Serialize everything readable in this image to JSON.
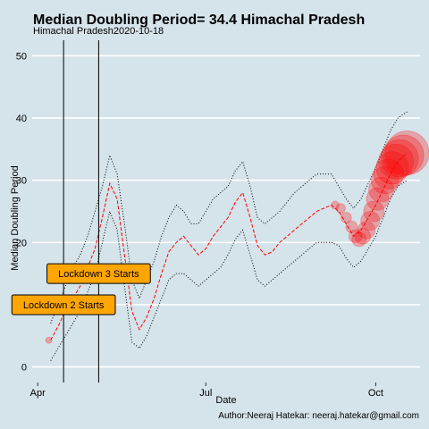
{
  "chart_data": {
    "type": "line",
    "title": "Median Doubling Period=  34.4 Himachal Pradesh",
    "subtitle": "Himachal Pradesh2020-10-18",
    "xlabel": "Date",
    "ylabel": "Median Doubling Period",
    "caption": "Author:Neeraj Hatekar: neeraj.hatekar@gmail.com",
    "ylim": [
      -2.5,
      52.5
    ],
    "xlim": [
      "2020-03-29",
      "2020-10-25"
    ],
    "y_ticks": [
      0,
      10,
      20,
      30,
      40,
      50
    ],
    "x_ticks": [
      {
        "date": "2020-04-01",
        "label": "Apr"
      },
      {
        "date": "2020-07-01",
        "label": "Jul"
      },
      {
        "date": "2020-10-01",
        "label": "Oct"
      }
    ],
    "grid": true,
    "colors": {
      "median": "#ff0000",
      "band": "#000000",
      "background": "#d5e3ea",
      "grid": "#ffffff",
      "annotation": "#ffa500"
    },
    "vlines": [
      {
        "date": "2020-04-15",
        "label": "Lockdown 2 Starts",
        "label_y": 10
      },
      {
        "date": "2020-05-04",
        "label": "Lockdown 3 Starts",
        "label_y": 15
      }
    ],
    "series": [
      {
        "role": "median",
        "style": "dashed",
        "x": [
          "2020-04-08",
          "2020-04-12",
          "2020-04-16",
          "2020-04-20",
          "2020-04-24",
          "2020-04-28",
          "2020-05-02",
          "2020-05-06",
          "2020-05-10",
          "2020-05-14",
          "2020-05-18",
          "2020-05-22",
          "2020-05-26",
          "2020-05-30",
          "2020-06-03",
          "2020-06-07",
          "2020-06-11",
          "2020-06-15",
          "2020-06-19",
          "2020-06-23",
          "2020-06-27",
          "2020-07-01",
          "2020-07-05",
          "2020-07-09",
          "2020-07-13",
          "2020-07-17",
          "2020-07-21",
          "2020-07-25",
          "2020-07-29",
          "2020-08-02",
          "2020-08-06",
          "2020-08-10",
          "2020-08-14",
          "2020-08-18",
          "2020-08-22",
          "2020-08-26",
          "2020-08-30",
          "2020-09-03",
          "2020-09-07",
          "2020-09-11",
          "2020-09-15",
          "2020-09-19",
          "2020-09-23",
          "2020-09-27",
          "2020-10-01",
          "2020-10-05",
          "2020-10-09",
          "2020-10-13",
          "2020-10-18"
        ],
        "y": [
          4.3,
          6.5,
          9,
          11,
          13,
          16,
          19,
          24,
          29.5,
          27,
          18,
          9,
          6,
          8,
          11,
          15,
          18.5,
          20,
          21,
          19.5,
          18,
          19,
          21,
          22.5,
          24,
          26.5,
          28,
          24,
          19.5,
          18,
          18.5,
          20,
          21,
          22,
          23,
          24,
          25,
          25.5,
          26,
          25,
          23,
          21,
          22,
          24,
          26,
          28.5,
          31,
          33,
          34.4
        ]
      },
      {
        "role": "upper-band",
        "style": "dotted",
        "x": [
          "2020-04-08",
          "2020-04-12",
          "2020-04-16",
          "2020-04-20",
          "2020-04-24",
          "2020-04-28",
          "2020-05-02",
          "2020-05-06",
          "2020-05-10",
          "2020-05-14",
          "2020-05-18",
          "2020-05-22",
          "2020-05-26",
          "2020-05-30",
          "2020-06-03",
          "2020-06-07",
          "2020-06-11",
          "2020-06-15",
          "2020-06-19",
          "2020-06-23",
          "2020-06-27",
          "2020-07-01",
          "2020-07-05",
          "2020-07-09",
          "2020-07-13",
          "2020-07-17",
          "2020-07-21",
          "2020-07-25",
          "2020-07-29",
          "2020-08-02",
          "2020-08-06",
          "2020-08-10",
          "2020-08-14",
          "2020-08-18",
          "2020-08-22",
          "2020-08-26",
          "2020-08-30",
          "2020-09-03",
          "2020-09-07",
          "2020-09-11",
          "2020-09-15",
          "2020-09-19",
          "2020-09-23",
          "2020-09-27",
          "2020-10-01",
          "2020-10-05",
          "2020-10-09",
          "2020-10-13",
          "2020-10-18"
        ],
        "y": [
          7,
          10,
          13,
          16,
          18,
          21,
          25,
          29,
          34,
          31,
          23,
          14,
          11,
          14,
          17,
          21,
          24,
          26,
          25,
          23,
          23,
          25,
          27,
          28,
          29,
          31.5,
          33,
          29,
          24,
          23,
          24,
          25,
          26.5,
          28,
          29,
          30,
          31,
          31,
          31,
          29,
          27,
          25.5,
          27,
          29.5,
          32,
          35,
          38,
          40,
          41
        ]
      },
      {
        "role": "lower-band",
        "style": "dotted",
        "x": [
          "2020-04-08",
          "2020-04-12",
          "2020-04-16",
          "2020-04-20",
          "2020-04-24",
          "2020-04-28",
          "2020-05-02",
          "2020-05-06",
          "2020-05-10",
          "2020-05-14",
          "2020-05-18",
          "2020-05-22",
          "2020-05-26",
          "2020-05-30",
          "2020-06-03",
          "2020-06-07",
          "2020-06-11",
          "2020-06-15",
          "2020-06-19",
          "2020-06-23",
          "2020-06-27",
          "2020-07-01",
          "2020-07-05",
          "2020-07-09",
          "2020-07-13",
          "2020-07-17",
          "2020-07-21",
          "2020-07-25",
          "2020-07-29",
          "2020-08-02",
          "2020-08-06",
          "2020-08-10",
          "2020-08-14",
          "2020-08-18",
          "2020-08-22",
          "2020-08-26",
          "2020-08-30",
          "2020-09-03",
          "2020-09-07",
          "2020-09-11",
          "2020-09-15",
          "2020-09-19",
          "2020-09-23",
          "2020-09-27",
          "2020-10-01",
          "2020-10-05",
          "2020-10-09",
          "2020-10-13",
          "2020-10-18"
        ],
        "y": [
          1,
          3,
          5,
          7,
          9,
          12,
          15,
          20,
          25,
          22,
          13,
          4,
          3,
          5,
          8,
          11,
          14,
          15,
          15,
          14,
          13,
          14,
          15,
          16,
          18,
          20.5,
          22,
          18,
          14,
          13,
          14,
          15,
          16,
          17,
          18,
          19,
          20,
          20,
          20,
          19.5,
          17.5,
          16,
          17,
          19,
          21,
          24,
          27,
          29,
          30
        ]
      }
    ],
    "points": {
      "x": [
        "2020-04-07",
        "2020-09-09",
        "2020-09-12",
        "2020-09-15",
        "2020-09-18",
        "2020-09-20",
        "2020-09-22",
        "2020-09-24",
        "2020-09-26",
        "2020-09-28",
        "2020-09-30",
        "2020-10-02",
        "2020-10-04",
        "2020-10-06",
        "2020-10-08",
        "2020-10-10",
        "2020-10-12",
        "2020-10-14",
        "2020-10-16",
        "2020-10-18"
      ],
      "y": [
        4.3,
        26,
        25.5,
        24,
        22.5,
        21,
        20.5,
        21,
        22,
        23.5,
        25,
        27,
        28.5,
        30,
        31,
        32,
        33,
        33.5,
        34,
        34.4
      ],
      "size": [
        1,
        1.3,
        1.5,
        1.7,
        1.9,
        2.1,
        2.3,
        2.5,
        2.8,
        3,
        3.3,
        3.6,
        4,
        4.4,
        4.8,
        5.2,
        5.6,
        6,
        6.5,
        7
      ]
    }
  }
}
